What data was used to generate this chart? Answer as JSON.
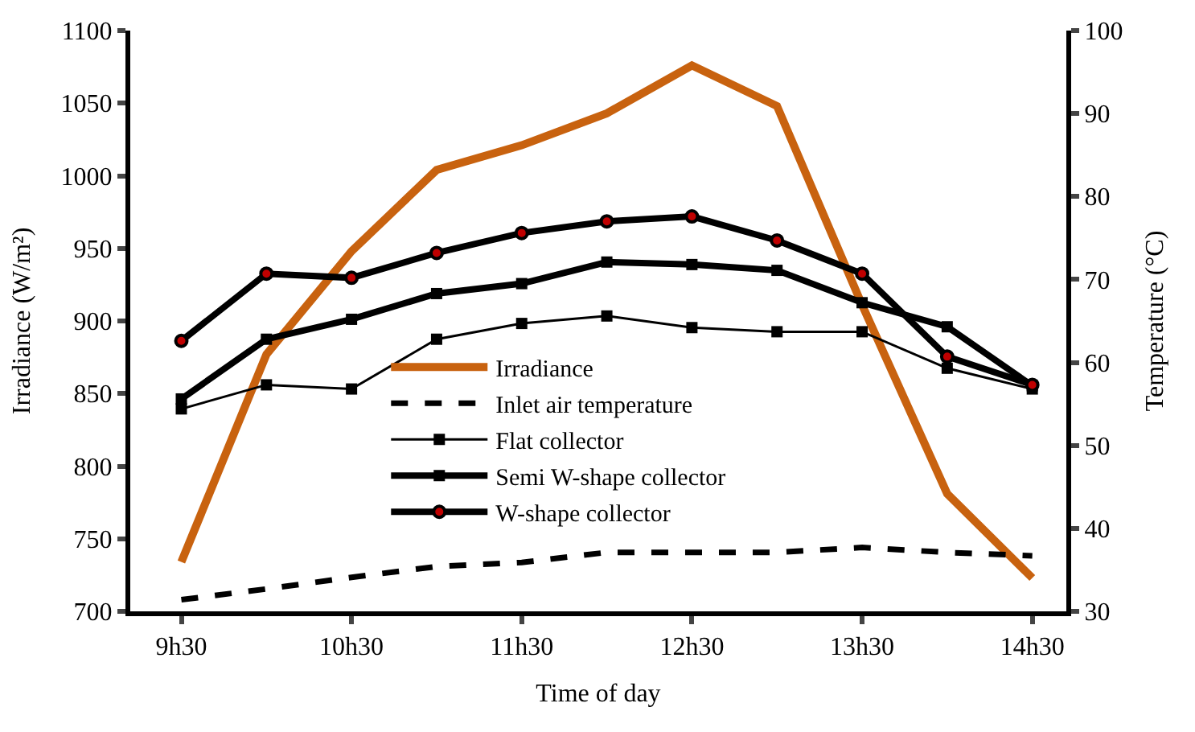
{
  "chart_data": {
    "type": "line",
    "xlabel": "Time of day",
    "ylabel": "Irradiance (W/m²)",
    "y2label": "Temperature (°C)",
    "categories": [
      "9h30",
      null,
      "10h30",
      null,
      "11h30",
      null,
      "12h30",
      null,
      "13h30",
      null,
      "14h30"
    ],
    "ylim": [
      700,
      1100
    ],
    "yticks": [
      700,
      750,
      800,
      850,
      900,
      950,
      1000,
      1050,
      1100
    ],
    "y2lim": [
      30,
      100
    ],
    "y2ticks": [
      30,
      40,
      50,
      60,
      70,
      80,
      90,
      100
    ],
    "legend": "bottom",
    "series": [
      {
        "name": "Irradiance",
        "color": "#c8620f",
        "marker": "none",
        "line_style": "solid",
        "values": [
          734,
          877,
          948,
          1004,
          1021,
          1043,
          1076,
          1048,
          911,
          781,
          723
        ]
      },
      {
        "name": "Inlet air temperature",
        "color": "#000000",
        "marker": "none",
        "line_style": "dashed",
        "axis": "y2",
        "values": [
          31.4,
          32.7,
          34.1,
          35.4,
          35.9,
          37.1,
          37.1,
          37.1,
          37.7,
          37.1,
          36.7
        ]
      },
      {
        "name": "Flat collector",
        "color": "#000000",
        "marker": "square",
        "line_style": "solid",
        "axis": "y2",
        "values": [
          54.4,
          57.3,
          56.8,
          62.8,
          64.7,
          65.6,
          64.2,
          63.7,
          63.7,
          59.3,
          56.8
        ]
      },
      {
        "name": "Semi W-shape collector",
        "color": "#000000",
        "marker": "square",
        "line_style": "solid",
        "axis": "y2",
        "values": [
          55.6,
          62.8,
          65.2,
          68.3,
          69.5,
          72.1,
          71.8,
          71.1,
          67.2,
          64.3,
          57.2
        ]
      },
      {
        "name": "W-shape collector",
        "color": "#000000",
        "marker": "circle",
        "line_style": "solid",
        "axis": "y2",
        "values": [
          62.6,
          70.7,
          70.2,
          73.2,
          75.6,
          77.0,
          77.6,
          74.7,
          70.7,
          60.7,
          57.3
        ]
      }
    ]
  }
}
